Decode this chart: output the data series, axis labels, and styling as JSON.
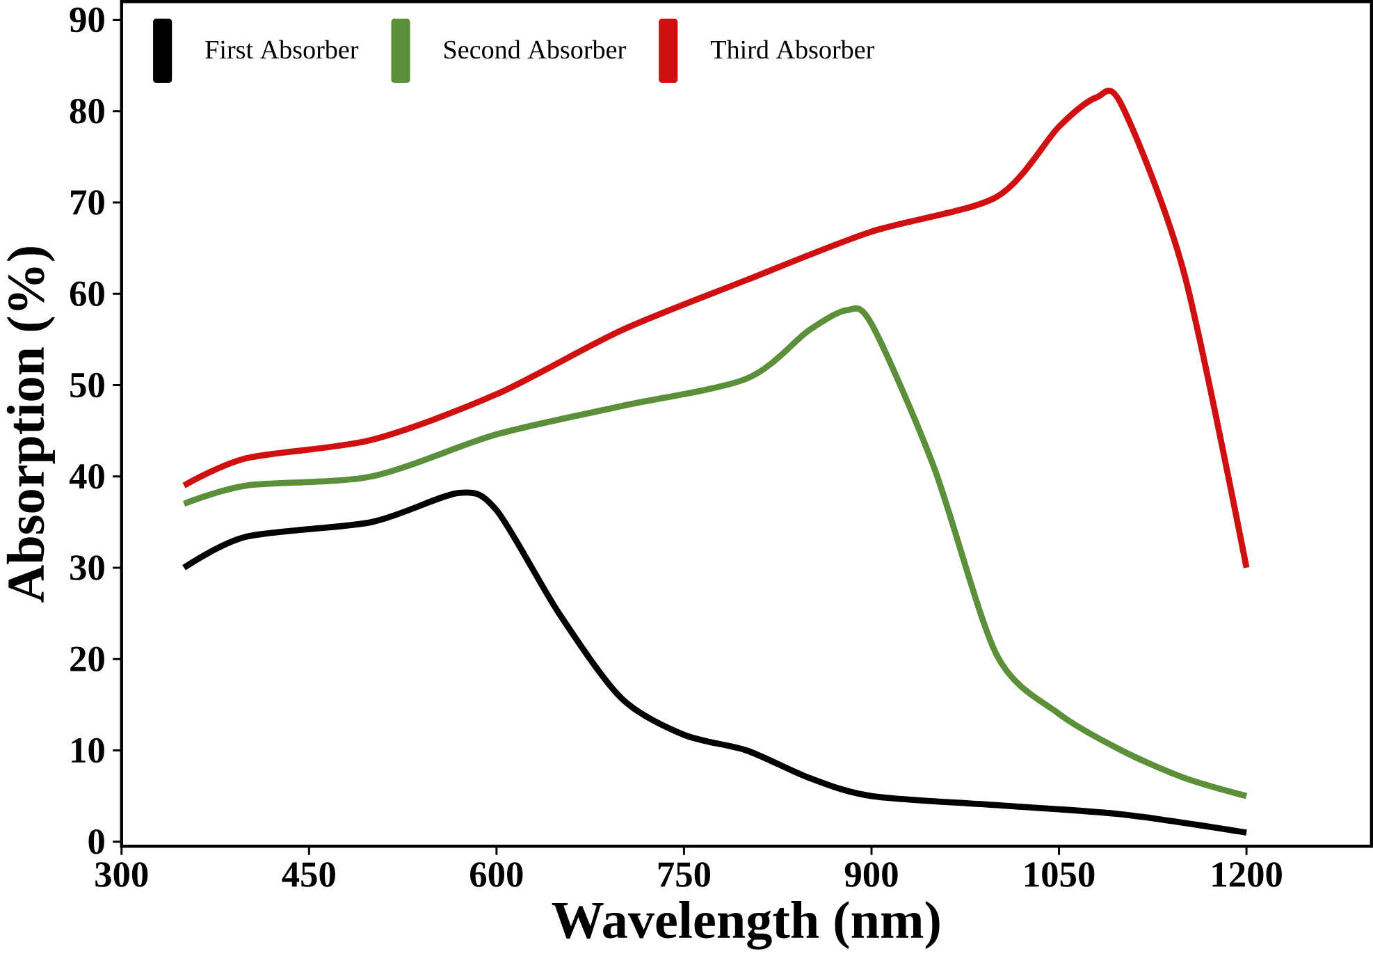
{
  "chart_data": {
    "type": "line",
    "xlabel": "Wavelength (nm)",
    "ylabel": "Absorption  (%)",
    "xlim": [
      300,
      1300
    ],
    "ylim": [
      -0.5,
      92
    ],
    "xticks": [
      300,
      450,
      600,
      750,
      900,
      1050,
      1200
    ],
    "yticks": [
      0,
      10,
      20,
      30,
      40,
      50,
      60,
      70,
      80,
      90
    ],
    "legend": "top",
    "grid": false,
    "series": [
      {
        "name": "First Absorber",
        "color": "#000000",
        "x": [
          350,
          400,
          500,
          570,
          600,
          650,
          700,
          750,
          800,
          850,
          900,
          1000,
          1100,
          1200
        ],
        "values": [
          30,
          33.4,
          35,
          38.2,
          36.3,
          25,
          15.7,
          11.7,
          10,
          7,
          5,
          4,
          3,
          1
        ]
      },
      {
        "name": "Second Absorber",
        "color": "#5b8f3a",
        "x": [
          350,
          400,
          500,
          600,
          700,
          800,
          850,
          880,
          900,
          950,
          1000,
          1050,
          1100,
          1150,
          1200
        ],
        "values": [
          37,
          39,
          40,
          44.6,
          47.7,
          50.7,
          56,
          58.2,
          56.7,
          41,
          20.5,
          14,
          10,
          7,
          5
        ]
      },
      {
        "name": "Third Absorber",
        "color": "#d01010",
        "x": [
          350,
          400,
          500,
          600,
          700,
          800,
          900,
          1000,
          1050,
          1080,
          1100,
          1150,
          1200
        ],
        "values": [
          39,
          42,
          44,
          49,
          56,
          61.5,
          66.8,
          70.6,
          78.3,
          81.5,
          80.7,
          62.3,
          30
        ]
      }
    ]
  }
}
